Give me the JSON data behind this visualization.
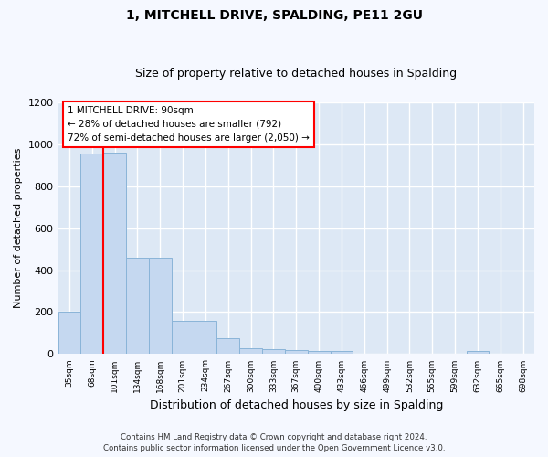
{
  "title": "1, MITCHELL DRIVE, SPALDING, PE11 2GU",
  "subtitle": "Size of property relative to detached houses in Spalding",
  "xlabel": "Distribution of detached houses by size in Spalding",
  "ylabel": "Number of detached properties",
  "categories": [
    "35sqm",
    "68sqm",
    "101sqm",
    "134sqm",
    "168sqm",
    "201sqm",
    "234sqm",
    "267sqm",
    "300sqm",
    "333sqm",
    "367sqm",
    "400sqm",
    "433sqm",
    "466sqm",
    "499sqm",
    "532sqm",
    "565sqm",
    "599sqm",
    "632sqm",
    "665sqm",
    "698sqm"
  ],
  "values": [
    200,
    955,
    960,
    460,
    460,
    160,
    160,
    75,
    30,
    25,
    20,
    15,
    15,
    0,
    0,
    0,
    0,
    0,
    15,
    0,
    0
  ],
  "bar_color": "#c5d8f0",
  "bar_edge_color": "#8ab4d8",
  "ylim": [
    0,
    1200
  ],
  "yticks": [
    0,
    200,
    400,
    600,
    800,
    1000,
    1200
  ],
  "property_size_label": "1 MITCHELL DRIVE: 90sqm",
  "annotation_line1": "← 28% of detached houses are smaller (792)",
  "annotation_line2": "72% of semi-detached houses are larger (2,050) →",
  "vline_x": 1.5,
  "footer1": "Contains HM Land Registry data © Crown copyright and database right 2024.",
  "footer2": "Contains public sector information licensed under the Open Government Licence v3.0.",
  "plot_bg_color": "#dde8f5",
  "fig_bg_color": "#f5f8ff",
  "grid_color": "#ffffff"
}
